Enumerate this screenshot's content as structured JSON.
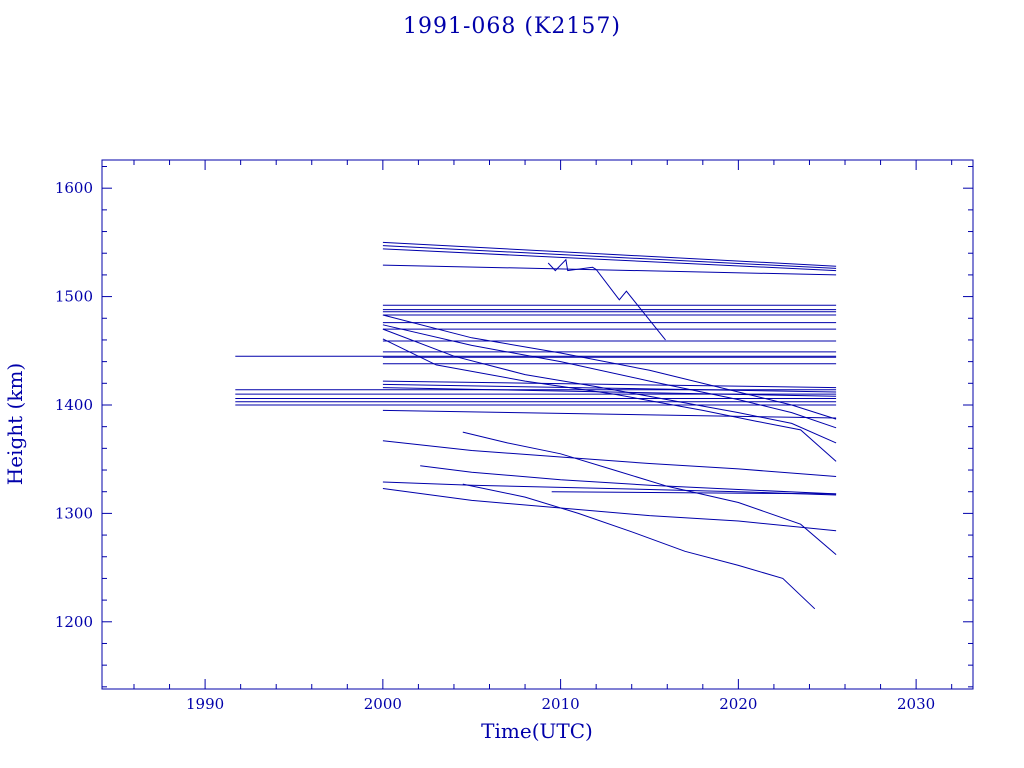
{
  "chart_data": {
    "type": "line",
    "title": "1991-068 (K2157)",
    "xlabel": "Time(UTC)",
    "ylabel": "Height (km)",
    "xlim": [
      1984.2,
      2033.2
    ],
    "ylim": [
      1138,
      1626
    ],
    "xticks": [
      1990,
      2000,
      2010,
      2020,
      2030
    ],
    "yticks": [
      1200,
      1300,
      1400,
      1500,
      1600
    ],
    "grid": false,
    "line_color": "#0000aa",
    "series": [
      {
        "x": [
          2000.0,
          2025.5
        ],
        "y": [
          1550,
          1528
        ]
      },
      {
        "x": [
          2000.0,
          2025.5
        ],
        "y": [
          1547,
          1526
        ]
      },
      {
        "x": [
          2000.0,
          2025.5
        ],
        "y": [
          1544,
          1524
        ]
      },
      {
        "x": [
          2000.0,
          2025.5
        ],
        "y": [
          1529,
          1520
        ]
      },
      {
        "x": [
          2009.3,
          2009.7,
          2010.3,
          2010.4,
          2011.8,
          2012.0,
          2013.3,
          2013.7,
          2015.9
        ],
        "y": [
          1531,
          1524,
          1534,
          1524,
          1527,
          1525,
          1497,
          1505,
          1460
        ]
      },
      {
        "x": [
          2000.0,
          2025.5
        ],
        "y": [
          1492,
          1492
        ]
      },
      {
        "x": [
          2000.0,
          2025.5
        ],
        "y": [
          1488,
          1488
        ]
      },
      {
        "x": [
          2000.0,
          2025.5
        ],
        "y": [
          1486,
          1486
        ]
      },
      {
        "x": [
          2000.0,
          2025.5
        ],
        "y": [
          1483,
          1483
        ]
      },
      {
        "x": [
          2000.0,
          2025.5
        ],
        "y": [
          1476,
          1476
        ]
      },
      {
        "x": [
          2000.0,
          2025.5
        ],
        "y": [
          1470,
          1470
        ]
      },
      {
        "x": [
          2000.0,
          2025.5
        ],
        "y": [
          1459,
          1459
        ]
      },
      {
        "x": [
          2000.0,
          2025.5
        ],
        "y": [
          1449,
          1449
        ]
      },
      {
        "x": [
          2000.0,
          2025.5
        ],
        "y": [
          1444,
          1444
        ]
      },
      {
        "x": [
          2000.0,
          2025.5
        ],
        "y": [
          1438,
          1438
        ]
      },
      {
        "x": [
          1991.7,
          2025.5
        ],
        "y": [
          1445,
          1445
        ]
      },
      {
        "x": [
          1991.7,
          2025.5
        ],
        "y": [
          1414,
          1414
        ]
      },
      {
        "x": [
          1991.7,
          2025.5
        ],
        "y": [
          1410,
          1410
        ]
      },
      {
        "x": [
          1991.7,
          2025.5
        ],
        "y": [
          1406,
          1406
        ]
      },
      {
        "x": [
          1991.7,
          2025.5
        ],
        "y": [
          1403,
          1403
        ]
      },
      {
        "x": [
          1991.7,
          2025.5
        ],
        "y": [
          1400,
          1400
        ]
      },
      {
        "x": [
          2000.0,
          2025.5
        ],
        "y": [
          1422,
          1416
        ]
      },
      {
        "x": [
          2000.0,
          2025.5
        ],
        "y": [
          1419,
          1412
        ]
      },
      {
        "x": [
          2000.0,
          2025.5
        ],
        "y": [
          1416,
          1408
        ]
      },
      {
        "x": [
          2000.0,
          2025.5
        ],
        "y": [
          1395,
          1388
        ]
      },
      {
        "x": [
          2000.0,
          2005,
          2010,
          2015,
          2020,
          2023,
          2025.5
        ],
        "y": [
          1483,
          1462,
          1448,
          1432,
          1412,
          1400,
          1387
        ]
      },
      {
        "x": [
          2000.0,
          2005,
          2010,
          2015,
          2020,
          2023,
          2025.5
        ],
        "y": [
          1474,
          1455,
          1440,
          1422,
          1405,
          1393,
          1379
        ]
      },
      {
        "x": [
          2000.0,
          2004,
          2008,
          2012,
          2016,
          2020,
          2023,
          2025.5
        ],
        "y": [
          1470,
          1445,
          1428,
          1417,
          1405,
          1393,
          1383,
          1365
        ]
      },
      {
        "x": [
          2000.0,
          2003,
          2008,
          2013,
          2018,
          2021,
          2023.5,
          2025.5
        ],
        "y": [
          1461,
          1437,
          1422,
          1410,
          1395,
          1385,
          1377,
          1348
        ]
      },
      {
        "x": [
          2000.0,
          2005,
          2010,
          2015,
          2020,
          2025.5
        ],
        "y": [
          1367,
          1358,
          1352,
          1346,
          1341,
          1334
        ]
      },
      {
        "x": [
          2002.1,
          2005,
          2010,
          2015,
          2020,
          2025.5
        ],
        "y": [
          1344,
          1338,
          1331,
          1326,
          1322,
          1318
        ]
      },
      {
        "x": [
          2000.0,
          2005,
          2010,
          2015,
          2020,
          2025.5
        ],
        "y": [
          1329,
          1326,
          1324,
          1322,
          1320,
          1317
        ]
      },
      {
        "x": [
          2009.5,
          2025.5
        ],
        "y": [
          1320,
          1318
        ]
      },
      {
        "x": [
          2000.0,
          2005,
          2010,
          2015,
          2020,
          2025.5
        ],
        "y": [
          1323,
          1312,
          1305,
          1298,
          1293,
          1284
        ]
      },
      {
        "x": [
          2004.5,
          2007,
          2010,
          2013,
          2016,
          2020,
          2023.5,
          2025.5
        ],
        "y": [
          1375,
          1365,
          1355,
          1340,
          1325,
          1310,
          1290,
          1262
        ]
      },
      {
        "x": [
          2004.5,
          2008,
          2011,
          2014,
          2017,
          2020,
          2022.5,
          2024.3
        ],
        "y": [
          1327,
          1315,
          1300,
          1283,
          1265,
          1252,
          1240,
          1212
        ]
      }
    ]
  }
}
